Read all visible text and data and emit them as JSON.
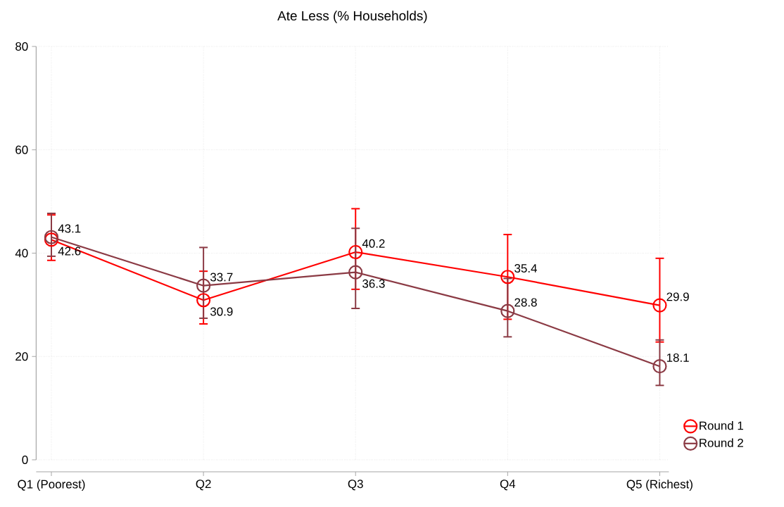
{
  "chart_data": {
    "type": "line",
    "title": "Ate Less (% Households)",
    "categories": [
      "Q1 (Poorest)",
      "Q2",
      "Q3",
      "Q4",
      "Q5 (Richest)"
    ],
    "series": [
      {
        "name": "Round 1",
        "color": "#ff0000",
        "values": [
          42.6,
          30.9,
          40.2,
          35.4,
          29.9
        ],
        "errors": [
          [
            38.6,
            47.4
          ],
          [
            26.3,
            36.5
          ],
          [
            33.0,
            48.6
          ],
          [
            27.2,
            43.6
          ],
          [
            22.8,
            39.0
          ]
        ]
      },
      {
        "name": "Round 2",
        "color": "#8b3a44",
        "values": [
          43.1,
          33.7,
          36.3,
          28.8,
          18.1
        ],
        "errors": [
          [
            39.4,
            47.7
          ],
          [
            27.4,
            41.1
          ],
          [
            29.3,
            44.8
          ],
          [
            23.8,
            35.1
          ],
          [
            14.4,
            23.2
          ]
        ]
      }
    ],
    "ylim": [
      0,
      80
    ],
    "yticks": [
      0,
      20,
      40,
      60,
      80
    ],
    "grid": true,
    "legend": "bottom right",
    "marker": "circle",
    "line_style": "solid",
    "data_labels": true
  }
}
